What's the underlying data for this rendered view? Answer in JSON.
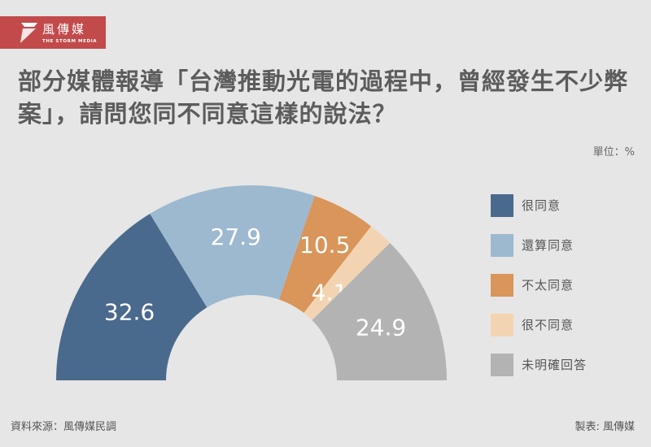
{
  "brand": {
    "name": "風傳媒",
    "subtitle": "THE STORM MEDIA",
    "color": "#c24a4b"
  },
  "title": "部分媒體報導「台灣推動光電的過程中，曾經發生不少弊案」，請問您同不同意這樣的說法？",
  "unit_label": "單位：%",
  "footer": {
    "source": "資料來源：風傳媒民調",
    "credit": "製表: 風傳媒"
  },
  "chart_data": {
    "type": "pie",
    "subtype": "half-donut",
    "title": "部分媒體報導「台灣推動光電的過程中，曾經發生不少弊案」，請問您同不同意這樣的說法？",
    "unit": "%",
    "categories": [
      "很同意",
      "還算同意",
      "不太同意",
      "很不同意",
      "未明確回答"
    ],
    "values": [
      32.6,
      27.9,
      10.5,
      4.1,
      24.9
    ],
    "colors": [
      "#4a6a8d",
      "#9db9d0",
      "#d9955a",
      "#f3d4b2",
      "#b3b3b3"
    ],
    "legend_position": "right"
  },
  "legend": [
    {
      "label": "很同意",
      "color": "#4a6a8d"
    },
    {
      "label": "還算同意",
      "color": "#9db9d0"
    },
    {
      "label": "不太同意",
      "color": "#d9955a"
    },
    {
      "label": "很不同意",
      "color": "#f3d4b2"
    },
    {
      "label": "未明確回答",
      "color": "#b3b3b3"
    }
  ]
}
